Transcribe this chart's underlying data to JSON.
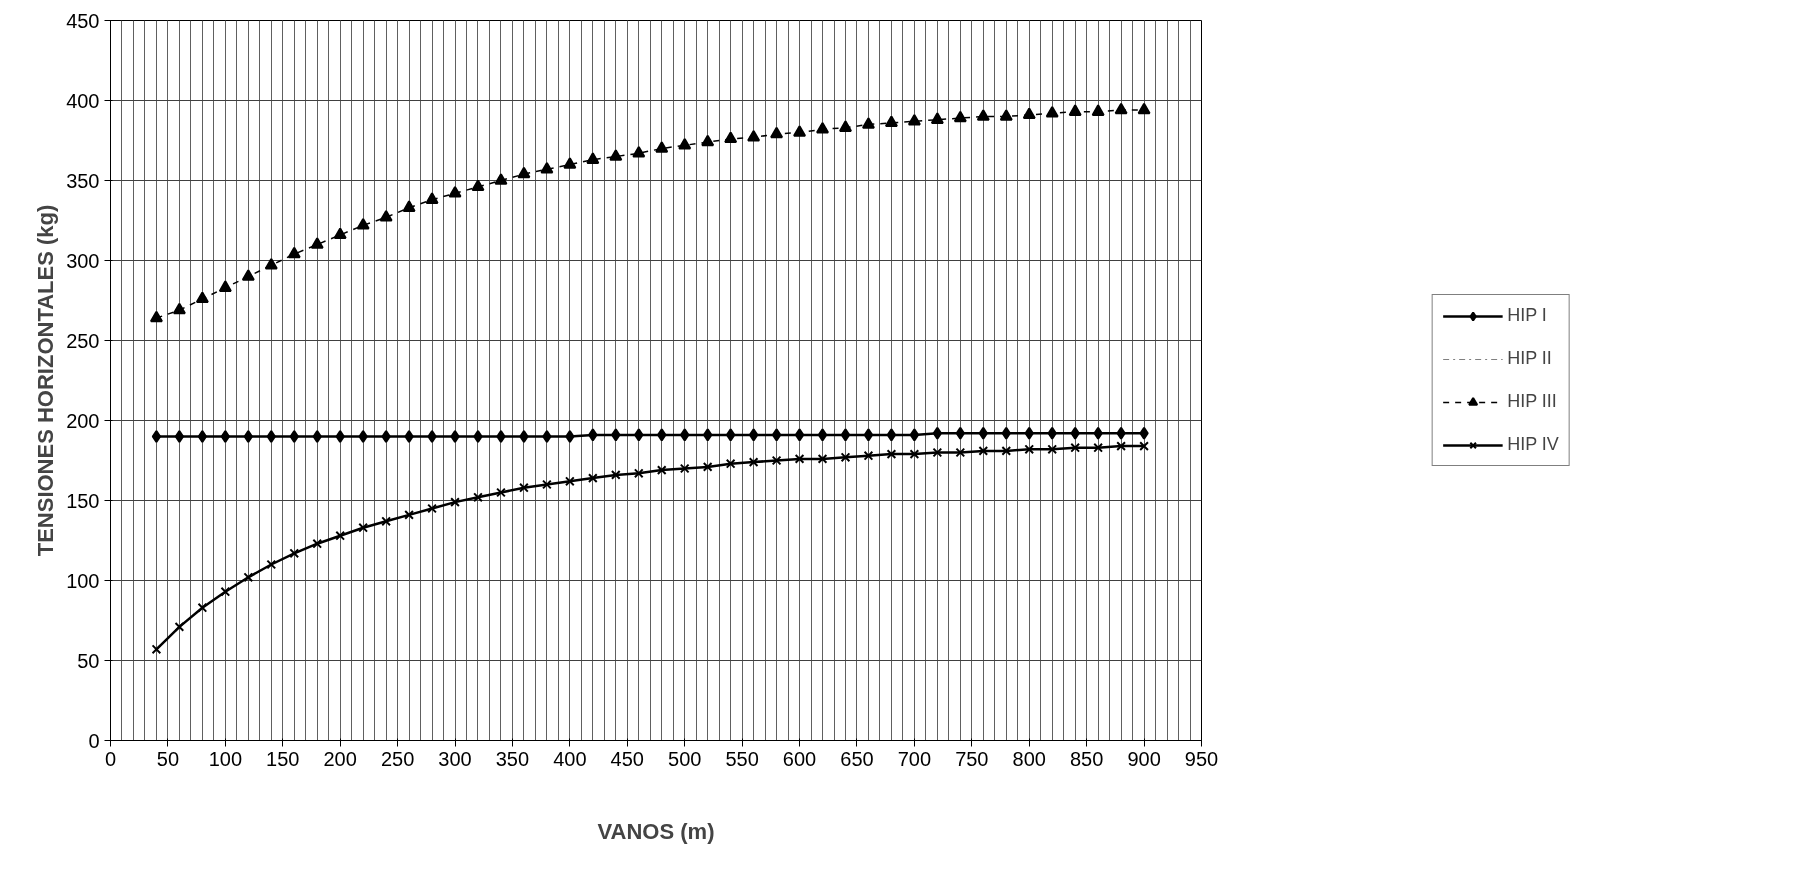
{
  "chart_data": {
    "type": "line",
    "xlabel": "VANOS (m)",
    "ylabel": "TENSIONES HORIZONTALES (kg)",
    "x": [
      40,
      60,
      80,
      100,
      120,
      140,
      160,
      180,
      200,
      220,
      240,
      260,
      280,
      300,
      320,
      340,
      360,
      380,
      400,
      420,
      440,
      460,
      480,
      500,
      520,
      540,
      560,
      580,
      600,
      620,
      640,
      660,
      680,
      700,
      720,
      740,
      760,
      780,
      800,
      820,
      840,
      860,
      880,
      900
    ],
    "series": [
      {
        "name": "HIP I",
        "color": "#000000",
        "marker": "diamond",
        "line_style": "solid",
        "values": [
          190,
          190,
          190,
          190,
          190,
          190,
          190,
          190,
          190,
          190,
          190,
          190,
          190,
          190,
          190,
          190,
          190,
          190,
          190,
          191,
          191,
          191,
          191,
          191,
          191,
          191,
          191,
          191,
          191,
          191,
          191,
          191,
          191,
          191,
          192,
          192,
          192,
          192,
          192,
          192,
          192,
          192,
          192,
          192
        ]
      },
      {
        "name": "HIP II",
        "color": "#808080",
        "marker": "none",
        "line_style": "dashdot",
        "values": [
          null,
          null,
          null,
          null,
          null,
          null,
          null,
          null,
          null,
          null,
          null,
          null,
          null,
          null,
          null,
          null,
          null,
          null,
          null,
          null,
          null,
          null,
          null,
          null,
          null,
          null,
          null,
          null,
          null,
          null,
          null,
          null,
          null,
          null,
          null,
          null,
          null,
          null,
          null,
          null,
          null,
          null,
          null,
          null
        ]
      },
      {
        "name": "HIP III",
        "color": "#000000",
        "marker": "triangle",
        "line_style": "dashed",
        "values": [
          264,
          269,
          276,
          283,
          290,
          297,
          304,
          310,
          316,
          322,
          327,
          333,
          338,
          342,
          346,
          350,
          354,
          357,
          360,
          363,
          365,
          367,
          370,
          372,
          374,
          376,
          377,
          379,
          380,
          382,
          383,
          385,
          386,
          387,
          388,
          389,
          390,
          390,
          391,
          392,
          393,
          393,
          394,
          394
        ]
      },
      {
        "name": "HIP IV",
        "color": "#000000",
        "marker": "x",
        "line_style": "solid",
        "values": [
          57,
          71,
          83,
          93,
          102,
          110,
          117,
          123,
          128,
          133,
          137,
          141,
          145,
          149,
          152,
          155,
          158,
          160,
          162,
          164,
          166,
          167,
          169,
          170,
          171,
          173,
          174,
          175,
          176,
          176,
          177,
          178,
          179,
          179,
          180,
          180,
          181,
          181,
          182,
          182,
          183,
          183,
          184,
          184
        ]
      }
    ],
    "xlim": [
      0,
      950
    ],
    "xticks": [
      0,
      50,
      100,
      150,
      200,
      250,
      300,
      350,
      400,
      450,
      500,
      550,
      600,
      650,
      700,
      750,
      800,
      850,
      900,
      950
    ],
    "ylim": [
      0,
      450
    ],
    "yticks": [
      0,
      50,
      100,
      150,
      200,
      250,
      300,
      350,
      400,
      450
    ],
    "grid": true,
    "legend": "right"
  }
}
